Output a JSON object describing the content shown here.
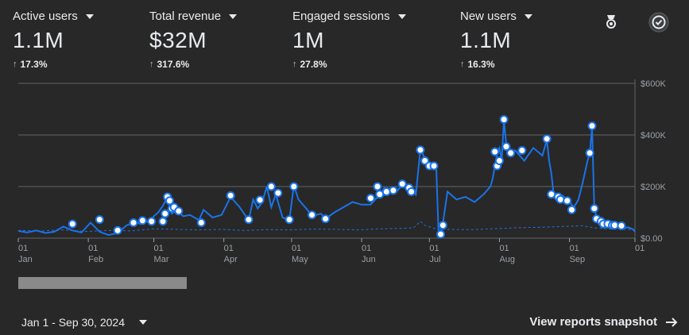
{
  "metrics": [
    {
      "title": "Active users",
      "value": "1.1M",
      "change": "17.3%"
    },
    {
      "title": "Total revenue",
      "value": "$32M",
      "change": "317.6%"
    },
    {
      "title": "Engaged sessions",
      "value": "1M",
      "change": "27.8%"
    },
    {
      "title": "New users",
      "value": "1.1M",
      "change": "16.3%"
    }
  ],
  "icons": {
    "insights": "insights-icon",
    "check": "check-circle-icon"
  },
  "colors": {
    "background": "#282828",
    "line": "#1a73e8",
    "grid": "#5f6368",
    "text": "#e8eaed",
    "muted": "#9aa0a6"
  },
  "footer": {
    "date_range": "Jan 1 - Sep 30, 2024",
    "view_link": "View reports snapshot"
  },
  "chart_data": {
    "type": "line",
    "title": "",
    "x_ticks": [
      {
        "day": "01",
        "month": "Jan"
      },
      {
        "day": "01",
        "month": "Feb"
      },
      {
        "day": "01",
        "month": "Mar"
      },
      {
        "day": "01",
        "month": "Apr"
      },
      {
        "day": "01",
        "month": "May"
      },
      {
        "day": "01",
        "month": "Jun"
      },
      {
        "day": "01",
        "month": "Jul"
      },
      {
        "day": "01",
        "month": "Aug"
      },
      {
        "day": "01",
        "month": "Sep"
      },
      {
        "day": "01",
        "month": ""
      }
    ],
    "y_ticks": [
      "$0.00",
      "$200K",
      "$400K",
      "$600K"
    ],
    "ylim": [
      0,
      600000
    ],
    "xlim": [
      0,
      273
    ],
    "series": [
      {
        "name": "Total revenue",
        "style": "solid",
        "points": [
          [
            0,
            28000
          ],
          [
            4,
            22000
          ],
          [
            8,
            30000
          ],
          [
            12,
            20000
          ],
          [
            16,
            25000
          ],
          [
            20,
            45000
          ],
          [
            24,
            30000
          ],
          [
            28,
            22000
          ],
          [
            32,
            60000
          ],
          [
            36,
            25000
          ],
          [
            40,
            12000
          ],
          [
            44,
            20000
          ],
          [
            48,
            50000
          ],
          [
            52,
            62000
          ],
          [
            54,
            55000
          ],
          [
            56,
            70000
          ],
          [
            58,
            58000
          ],
          [
            60,
            85000
          ],
          [
            62,
            100000
          ],
          [
            64,
            125000
          ],
          [
            66,
            160000
          ],
          [
            68,
            95000
          ],
          [
            70,
            110000
          ],
          [
            73,
            85000
          ],
          [
            76,
            90000
          ],
          [
            80,
            70000
          ],
          [
            82,
            110000
          ],
          [
            86,
            80000
          ],
          [
            90,
            90000
          ],
          [
            94,
            160000
          ],
          [
            98,
            120000
          ],
          [
            102,
            70000
          ],
          [
            104,
            150000
          ],
          [
            106,
            115000
          ],
          [
            108,
            140000
          ],
          [
            110,
            200000
          ],
          [
            112,
            120000
          ],
          [
            114,
            170000
          ],
          [
            117,
            80000
          ],
          [
            120,
            70000
          ],
          [
            122,
            205000
          ],
          [
            124,
            150000
          ],
          [
            128,
            110000
          ],
          [
            130,
            85000
          ],
          [
            134,
            95000
          ],
          [
            136,
            75000
          ],
          [
            140,
            100000
          ],
          [
            144,
            120000
          ],
          [
            148,
            140000
          ],
          [
            152,
            130000
          ],
          [
            156,
            130000
          ],
          [
            158,
            150000
          ],
          [
            160,
            165000
          ],
          [
            162,
            195000
          ],
          [
            164,
            175000
          ],
          [
            166,
            195000
          ],
          [
            168,
            185000
          ],
          [
            170,
            210000
          ],
          [
            172,
            190000
          ],
          [
            174,
            200000
          ],
          [
            176,
            170000
          ],
          [
            178,
            345000
          ],
          [
            180,
            310000
          ],
          [
            182,
            290000
          ],
          [
            184,
            270000
          ],
          [
            185,
            280000
          ],
          [
            186,
            30000
          ],
          [
            187,
            15000
          ],
          [
            188,
            60000
          ],
          [
            190,
            180000
          ],
          [
            194,
            150000
          ],
          [
            198,
            160000
          ],
          [
            202,
            140000
          ],
          [
            206,
            170000
          ],
          [
            209,
            200000
          ],
          [
            210,
            230000
          ],
          [
            211,
            280000
          ],
          [
            212,
            330000
          ],
          [
            213,
            350000
          ],
          [
            214,
            300000
          ],
          [
            215,
            455000
          ],
          [
            216,
            365000
          ],
          [
            217,
            335000
          ],
          [
            220,
            340000
          ],
          [
            224,
            300000
          ],
          [
            228,
            350000
          ],
          [
            232,
            320000
          ],
          [
            234,
            380000
          ],
          [
            235,
            300000
          ],
          [
            236,
            250000
          ],
          [
            237,
            170000
          ],
          [
            239,
            160000
          ],
          [
            241,
            165000
          ],
          [
            242,
            155000
          ],
          [
            244,
            140000
          ],
          [
            246,
            120000
          ],
          [
            248,
            150000
          ],
          [
            250,
            220000
          ],
          [
            252,
            300000
          ],
          [
            253,
            330000
          ],
          [
            254,
            430000
          ],
          [
            255,
            120000
          ],
          [
            256,
            80000
          ],
          [
            258,
            65000
          ],
          [
            260,
            60000
          ],
          [
            262,
            55000
          ],
          [
            264,
            50000
          ],
          [
            266,
            45000
          ],
          [
            268,
            40000
          ],
          [
            270,
            42000
          ],
          [
            272,
            35000
          ],
          [
            273,
            25000
          ]
        ],
        "markers": [
          [
            24,
            55000
          ],
          [
            36,
            72000
          ],
          [
            44,
            30000
          ],
          [
            51,
            60000
          ],
          [
            55,
            68000
          ],
          [
            59,
            65000
          ],
          [
            64,
            65000
          ],
          [
            65,
            95000
          ],
          [
            66,
            160000
          ],
          [
            67,
            145000
          ],
          [
            68,
            115000
          ],
          [
            69,
            120000
          ],
          [
            71,
            105000
          ],
          [
            81,
            60000
          ],
          [
            94,
            165000
          ],
          [
            102,
            72000
          ],
          [
            107,
            148000
          ],
          [
            112,
            200000
          ],
          [
            115,
            175000
          ],
          [
            120,
            72000
          ],
          [
            122,
            200000
          ],
          [
            130,
            90000
          ],
          [
            136,
            75000
          ],
          [
            156,
            155000
          ],
          [
            159,
            200000
          ],
          [
            160,
            170000
          ],
          [
            163,
            180000
          ],
          [
            166,
            185000
          ],
          [
            170,
            210000
          ],
          [
            173,
            195000
          ],
          [
            174,
            180000
          ],
          [
            178,
            342000
          ],
          [
            180,
            300000
          ],
          [
            182,
            280000
          ],
          [
            184,
            280000
          ],
          [
            187,
            15000
          ],
          [
            188,
            50000
          ],
          [
            211,
            335000
          ],
          [
            212,
            280000
          ],
          [
            213,
            300000
          ],
          [
            215,
            460000
          ],
          [
            216,
            355000
          ],
          [
            218,
            330000
          ],
          [
            223,
            340000
          ],
          [
            234,
            385000
          ],
          [
            236,
            170000
          ],
          [
            239,
            160000
          ],
          [
            240,
            150000
          ],
          [
            243,
            145000
          ],
          [
            245,
            110000
          ],
          [
            253,
            330000
          ],
          [
            254,
            435000
          ],
          [
            255,
            115000
          ],
          [
            256,
            75000
          ],
          [
            258,
            65000
          ],
          [
            259,
            55000
          ],
          [
            261,
            55000
          ],
          [
            263,
            50000
          ],
          [
            264,
            50000
          ],
          [
            267,
            48000
          ]
        ]
      },
      {
        "name": "Comparison",
        "style": "dashed",
        "points": [
          [
            0,
            30000
          ],
          [
            10,
            28000
          ],
          [
            20,
            32000
          ],
          [
            30,
            26000
          ],
          [
            40,
            30000
          ],
          [
            50,
            28000
          ],
          [
            60,
            36000
          ],
          [
            70,
            34000
          ],
          [
            80,
            32000
          ],
          [
            90,
            34000
          ],
          [
            100,
            30000
          ],
          [
            110,
            33000
          ],
          [
            120,
            32000
          ],
          [
            130,
            35000
          ],
          [
            140,
            34000
          ],
          [
            150,
            32000
          ],
          [
            160,
            36000
          ],
          [
            170,
            38000
          ],
          [
            175,
            40000
          ],
          [
            178,
            65000
          ],
          [
            180,
            50000
          ],
          [
            185,
            35000
          ],
          [
            190,
            34000
          ],
          [
            200,
            33000
          ],
          [
            210,
            36000
          ],
          [
            220,
            40000
          ],
          [
            230,
            42000
          ],
          [
            240,
            45000
          ],
          [
            250,
            48000
          ],
          [
            255,
            40000
          ],
          [
            260,
            36000
          ],
          [
            270,
            34000
          ],
          [
            273,
            32000
          ]
        ]
      }
    ]
  }
}
